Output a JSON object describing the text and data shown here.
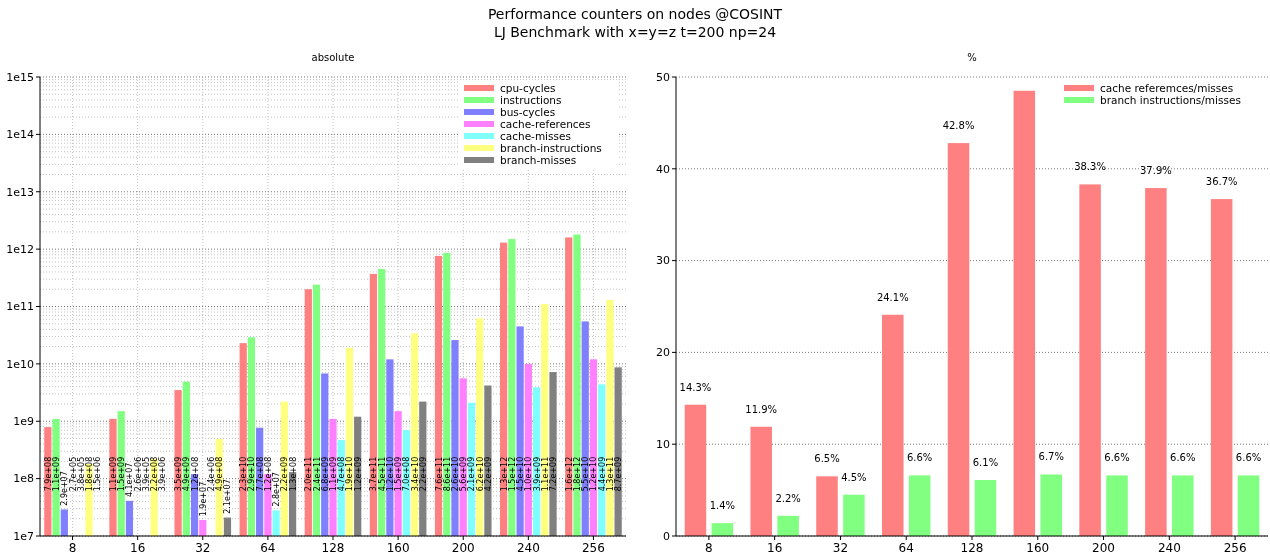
{
  "chart_data": [
    {
      "type": "bar",
      "title": "Performance counters on nodes @COSINT",
      "subtitle": "LJ Benchmark with x=y=z t=200 np=24",
      "annotations": [
        "absolute"
      ],
      "categories": [
        "8",
        "16",
        "32",
        "64",
        "128",
        "160",
        "200",
        "240",
        "256"
      ],
      "log": true,
      "ylim": [
        10000000.0,
        1000000000000000.0
      ],
      "yticks": [
        {
          "value": 10000000.0,
          "label": "1e7"
        },
        {
          "value": 100000000.0,
          "label": "1e8"
        },
        {
          "value": 1000000000.0,
          "label": "1e9"
        },
        {
          "value": 10000000000.0,
          "label": "1e10"
        },
        {
          "value": 100000000000.0,
          "label": "1e11"
        },
        {
          "value": 1000000000000.0,
          "label": "1e12"
        },
        {
          "value": 10000000000000.0,
          "label": "1e13"
        },
        {
          "value": 100000000000000.0,
          "label": "1e14"
        },
        {
          "value": 1000000000000000.0,
          "label": "1e15"
        }
      ],
      "grid": true,
      "legend": "top right",
      "series": [
        {
          "name": "cpu-cycles",
          "color": "#ff8080",
          "values": [
            790000000.0,
            1100000000.0,
            3500000000.0,
            23000000000.0,
            200000000000.0,
            370000000000.0,
            760000000000.0,
            1300000000000.0,
            1600000000000.0
          ],
          "value_labels": [
            "7.9e+08",
            "1.1e+09",
            "3.5e+09",
            "2.3e+10",
            "2.0e+11",
            "3.7e+11",
            "7.6e+11",
            "1.3e+12",
            "1.6e+12"
          ]
        },
        {
          "name": "instructions",
          "color": "#80ff80",
          "values": [
            1100000000.0,
            1500000000.0,
            4900000000.0,
            29000000000.0,
            240000000000.0,
            450000000000.0,
            860000000000.0,
            1500000000000.0,
            1800000000000.0
          ],
          "value_labels": [
            "1.1e+09",
            "1.5e+09",
            "4.9e+09",
            "2.9e+10",
            "2.4e+11",
            "4.5e+11",
            "8.6e+11",
            "1.5e+12",
            "1.8e+12"
          ]
        },
        {
          "name": "bus-cycles",
          "color": "#8080ff",
          "values": [
            29000000.0,
            41000000.0,
            120000000.0,
            770000000.0,
            6800000000.0,
            12000000000.0,
            26000000000.0,
            45000000000.0,
            55000000000.0
          ],
          "value_labels": [
            "2.9e+07",
            "4.1e+07",
            "1.2e+08",
            "7.7e+08",
            "6.8e+09",
            "1.2e+10",
            "2.6e+10",
            "4.5e+10",
            "5.5e+10"
          ]
        },
        {
          "name": "cache-references",
          "color": "#ff80ff",
          "values": [
            null,
            null,
            19000000.0,
            120000000.0,
            1100000000.0,
            1500000000.0,
            5600000000.0,
            10000000000.0,
            12000000000.0
          ],
          "value_labels": [
            "2.7e+05",
            "2.6e+06",
            "1.9e+07",
            "1.2e+08",
            "1.1e+09",
            "1.5e+09",
            "5.6e+09",
            "1.0e+10",
            "1.2e+10"
          ]
        },
        {
          "name": "cache-misses",
          "color": "#80ffff",
          "values": [
            null,
            null,
            null,
            28000000.0,
            470000000.0,
            700000000.0,
            2100000000.0,
            3900000000.0,
            4400000000.0
          ],
          "value_labels": [
            "3.8e+05",
            "3.9e+05",
            "2.4e+06",
            "2.8e+07",
            "4.7e+08",
            "7.0e+08",
            "2.1e+09",
            "3.9e+09",
            "4.4e+09"
          ]
        },
        {
          "name": "branch-instructions",
          "color": "#ffff80",
          "values": [
            180000000.0,
            220000000.0,
            490000000.0,
            2200000000.0,
            19000000000.0,
            34000000000.0,
            62000000000.0,
            110000000000.0,
            130000000000.0
          ],
          "value_labels": [
            "1.8e+08",
            "2.2e+08",
            "4.9e+08",
            "2.2e+09",
            "1.9e+10",
            "3.4e+10",
            "6.2e+10",
            "1.1e+11",
            "1.3e+11"
          ]
        },
        {
          "name": "branch-misses",
          "color": "#808080",
          "values": [
            null,
            null,
            21000000.0,
            130000000.0,
            1200000000.0,
            2200000000.0,
            4200000000.0,
            7200000000.0,
            8700000000.0
          ],
          "value_labels": [
            "1.5e+06",
            "3.9e+06",
            "2.1e+07",
            "1.3e+08",
            "1.2e+09",
            "2.2e+09",
            "4.2e+09",
            "7.2e+09",
            "8.7e+09"
          ]
        }
      ]
    },
    {
      "type": "bar",
      "title": "%",
      "categories": [
        "8",
        "16",
        "32",
        "64",
        "128",
        "160",
        "200",
        "240",
        "256"
      ],
      "ylim": [
        0,
        50
      ],
      "yticks": [
        0,
        10,
        20,
        30,
        40,
        50
      ],
      "grid": "y",
      "legend": "top right",
      "series": [
        {
          "name": "cache referemces/misses",
          "color": "#ff8080",
          "values": [
            14.3,
            11.9,
            6.5,
            24.1,
            42.8,
            48.5,
            38.3,
            37.9,
            36.7
          ],
          "value_labels": [
            "14.3%",
            "11.9%",
            "6.5%",
            "24.1%",
            "42.8%",
            null,
            "38.3%",
            "37.9%",
            "36.7%"
          ]
        },
        {
          "name": "branch instructions/misses",
          "color": "#80ff80",
          "values": [
            1.4,
            2.2,
            4.5,
            6.6,
            6.1,
            6.7,
            6.6,
            6.6,
            6.6
          ],
          "value_labels": [
            "1.4%",
            "2.2%",
            "4.5%",
            "6.6%",
            "6.1%",
            "6.7%",
            "6.6%",
            "6.6%",
            "6.6%"
          ]
        }
      ]
    }
  ]
}
